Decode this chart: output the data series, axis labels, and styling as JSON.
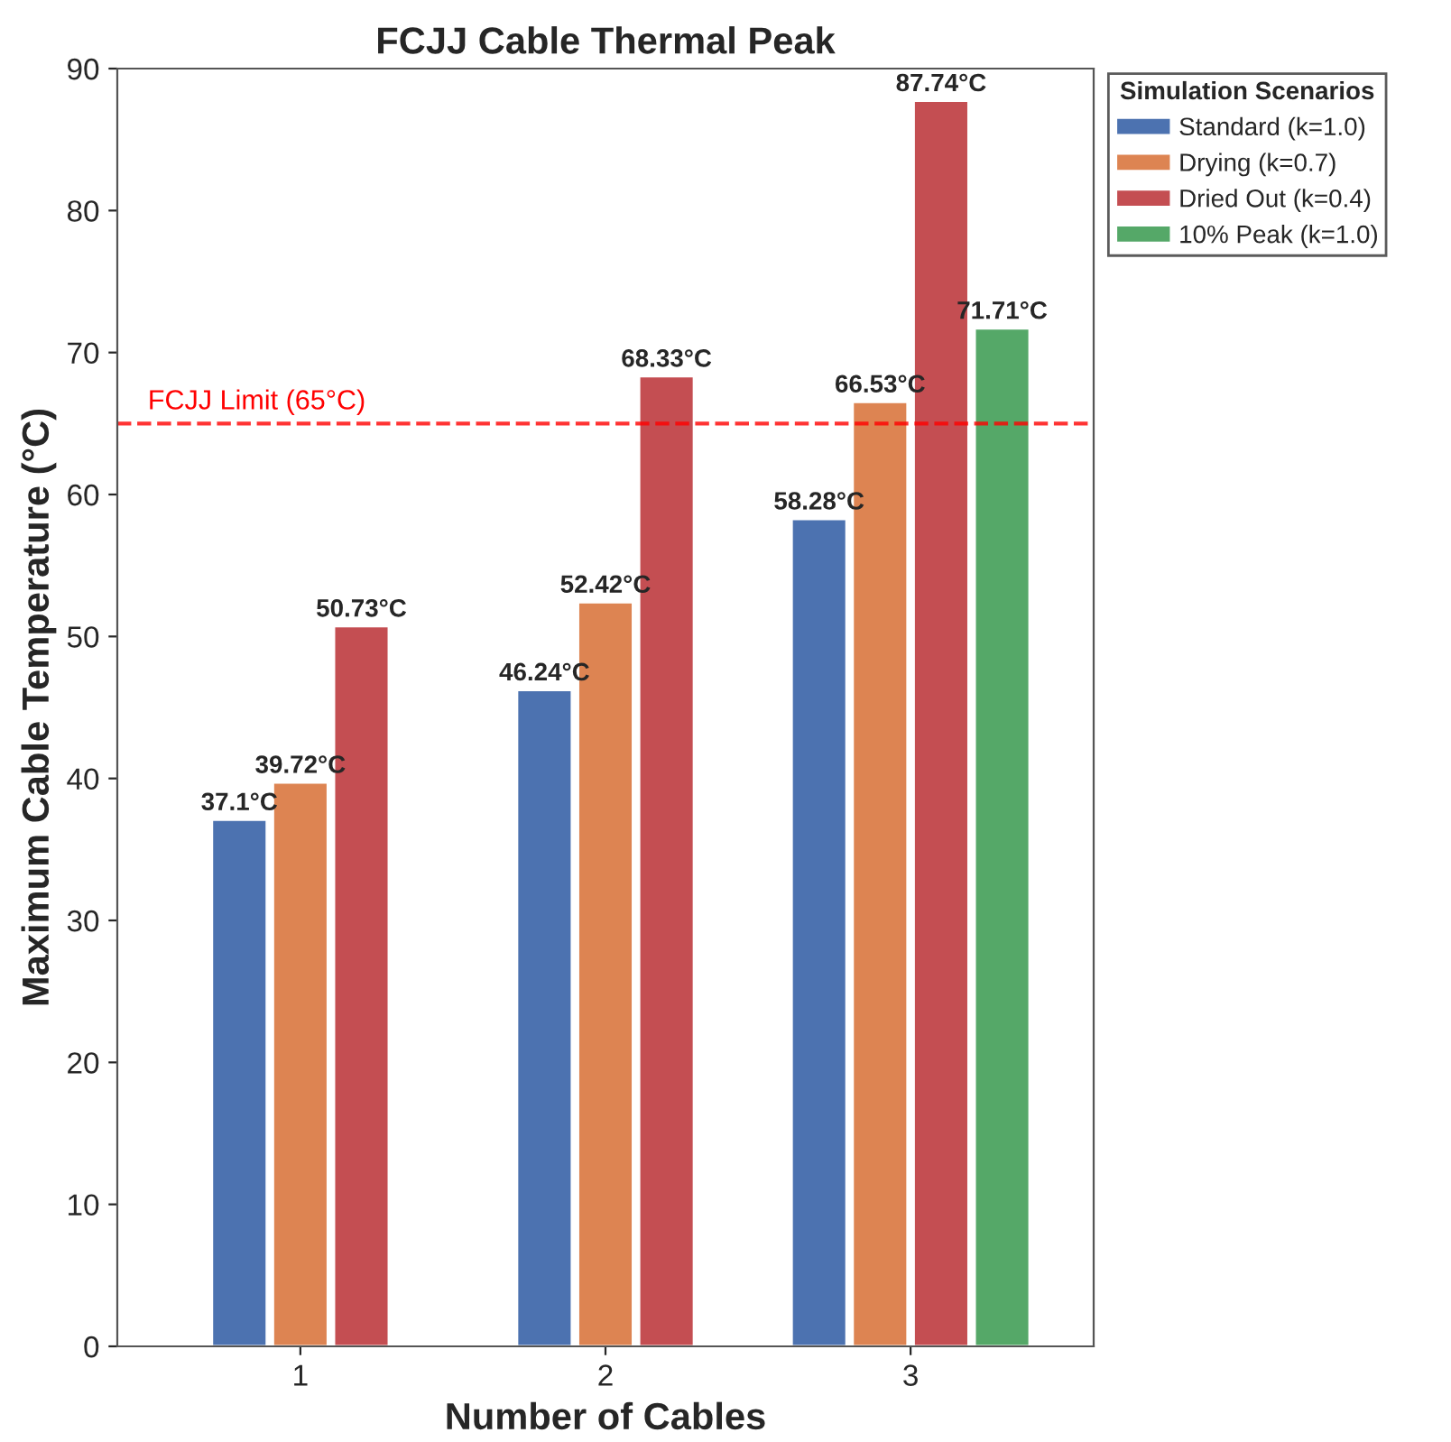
{
  "chart_data": {
    "type": "bar",
    "title": "FCJJ Cable Thermal Peak",
    "xlabel": "Number of Cables",
    "ylabel": "Maximum Cable Temperature (°C)",
    "legend_title": "Simulation Scenarios",
    "categories": [
      "1",
      "2",
      "3"
    ],
    "series": [
      {
        "name": "Standard (k=1.0)",
        "color": "#4c72b0",
        "values": [
          37.1,
          46.24,
          58.28
        ],
        "value_labels": [
          "37.1°C",
          "46.24°C",
          "58.28°C"
        ]
      },
      {
        "name": "Drying (k=0.7)",
        "color": "#dd8452",
        "values": [
          39.72,
          52.42,
          66.53
        ],
        "value_labels": [
          "39.72°C",
          "52.42°C",
          "66.53°C"
        ]
      },
      {
        "name": "Dried Out (k=0.4)",
        "color": "#c44e52",
        "values": [
          50.73,
          68.33,
          87.74
        ],
        "value_labels": [
          "50.73°C",
          "68.33°C",
          "87.74°C"
        ]
      },
      {
        "name": "10% Peak (k=1.0)",
        "color": "#55a868",
        "values": [
          null,
          null,
          71.71
        ],
        "value_labels": [
          null,
          null,
          "71.71°C"
        ]
      }
    ],
    "ylim": [
      0,
      90
    ],
    "yticks": [
      0,
      10,
      20,
      30,
      40,
      50,
      60,
      70,
      80,
      90
    ],
    "ref_lines": [
      {
        "axis": "y",
        "value": 65,
        "label": "FCJJ Limit (65°C)",
        "color": "#ff0000",
        "line_style": "dashed"
      }
    ],
    "grid": false,
    "legend": "top right"
  }
}
